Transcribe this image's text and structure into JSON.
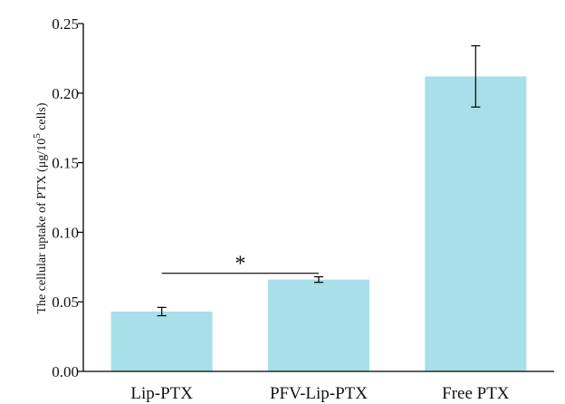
{
  "chart_data": {
    "type": "bar",
    "title": "",
    "categories": [
      "Lip-PTX",
      "PFV-Lip-PTX",
      "Free PTX"
    ],
    "values": [
      0.043,
      0.066,
      0.212
    ],
    "error": [
      0.003,
      0.002,
      0.022
    ],
    "ylabel_parts": {
      "prefix": "The cellular uptake of PTX (μg/10",
      "superscript": "5",
      "suffix": " cells)"
    },
    "xlabel": "",
    "ylim": [
      0,
      0.25
    ],
    "yticks": [
      "0.00",
      "0.05",
      "0.10",
      "0.15",
      "0.20",
      "0.25"
    ],
    "bar_color": "#a8dfe8",
    "grid": false,
    "significance": {
      "from": "Lip-PTX",
      "to": "PFV-Lip-PTX",
      "label": "*",
      "y": 0.0705
    }
  }
}
